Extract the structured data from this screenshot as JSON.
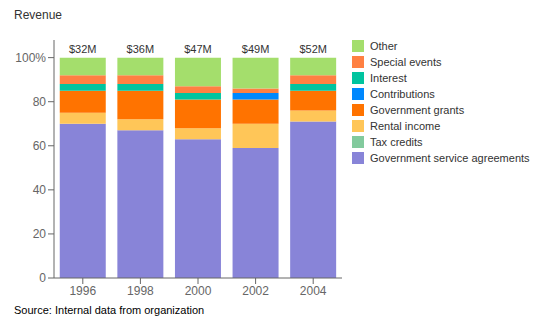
{
  "chart_data": {
    "type": "bar",
    "stacked": true,
    "y_label": "Revenue",
    "source": "Source: Internal data from organization",
    "categories": [
      "1996",
      "1998",
      "2000",
      "2002",
      "2004"
    ],
    "series": [
      {
        "name": "Government service agreements",
        "color": "#8884d8",
        "values": [
          70,
          67,
          63,
          59,
          71
        ]
      },
      {
        "name": "Tax credits",
        "color": "#82ca9d",
        "values": [
          0,
          0,
          0,
          0,
          0
        ]
      },
      {
        "name": "Rental income",
        "color": "#ffc658",
        "values": [
          5,
          5,
          5,
          11,
          5
        ]
      },
      {
        "name": "Government grants",
        "color": "#ff7300",
        "values": [
          10,
          13,
          13,
          11,
          9
        ]
      },
      {
        "name": "Contributions",
        "color": "#0088fe",
        "values": [
          0,
          0,
          0,
          3,
          0
        ]
      },
      {
        "name": "Interest",
        "color": "#00c49f",
        "values": [
          3,
          3,
          3,
          0,
          3
        ]
      },
      {
        "name": "Special events",
        "color": "#ff8042",
        "values": [
          4,
          4,
          3,
          2,
          4
        ]
      },
      {
        "name": "Other",
        "color": "#a4de6c",
        "values": [
          8,
          8,
          13,
          14,
          8
        ]
      }
    ],
    "ylim": [
      0,
      108
    ],
    "yticks": [
      0,
      20,
      40,
      60,
      80,
      {
        "value": 100,
        "label": "100%"
      }
    ],
    "annotations": [
      {
        "x": "1996",
        "text": "$32M"
      },
      {
        "x": "1998",
        "text": "$36M"
      },
      {
        "x": "2000",
        "text": "$47M"
      },
      {
        "x": "2002",
        "text": "$49M"
      },
      {
        "x": "2004",
        "text": "$52M"
      }
    ],
    "legend": "right",
    "grid": false
  }
}
